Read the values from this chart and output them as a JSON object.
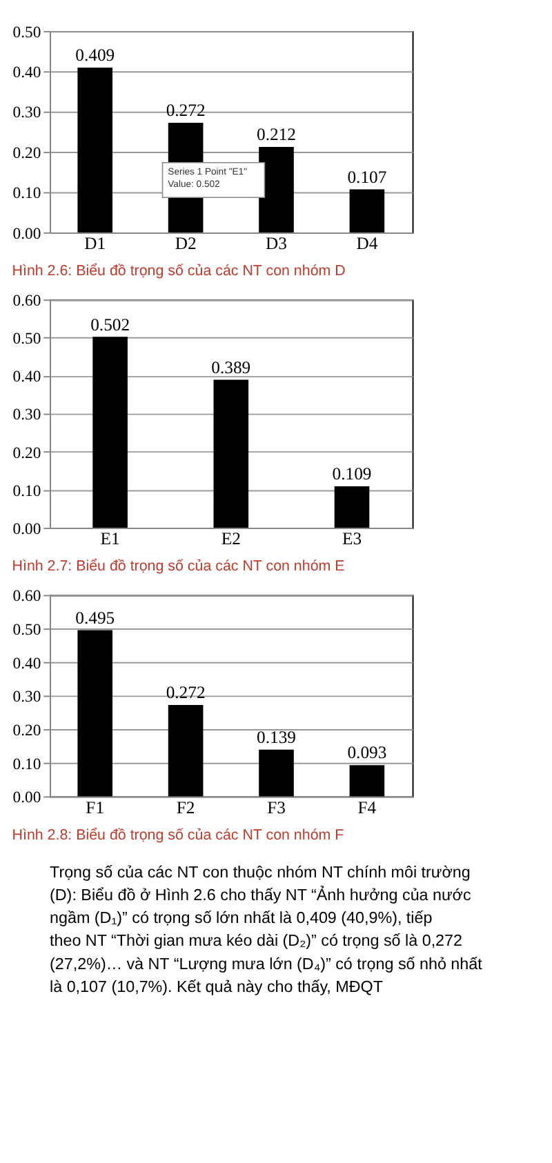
{
  "chart_data": [
    {
      "type": "bar",
      "categories": [
        "D1",
        "D2",
        "D3",
        "D4"
      ],
      "values": [
        0.409,
        0.272,
        0.212,
        0.107
      ],
      "color": "#000000",
      "ylim": [
        0,
        0.5
      ],
      "yticks": [
        {
          "value": 0,
          "label": "0.00"
        },
        {
          "value": 0.1,
          "label": "0.10"
        },
        {
          "value": 0.2,
          "label": "0.20"
        },
        {
          "value": 0.3,
          "label": "0.30"
        },
        {
          "value": 0.4,
          "label": "0.40"
        },
        {
          "value": 0.5,
          "label": "0.50"
        }
      ],
      "grid": "y",
      "data_labels": true,
      "annotations": [
        "Hình 2.6: Biểu đồ trọng số của các NT con nhóm D",
        "Series 1 Point \"E1\"\nValue: 0.502"
      ]
    },
    {
      "type": "bar",
      "categories": [
        "E1",
        "E2",
        "E3"
      ],
      "values": [
        0.502,
        0.389,
        0.109
      ],
      "color": "#000000",
      "ylim": [
        0,
        0.6
      ],
      "yticks": [
        {
          "value": 0,
          "label": "0.00"
        },
        {
          "value": 0.1,
          "label": "0.10"
        },
        {
          "value": 0.2,
          "label": "0.20"
        },
        {
          "value": 0.3,
          "label": "0.30"
        },
        {
          "value": 0.4,
          "label": "0.40"
        },
        {
          "value": 0.5,
          "label": "0.50"
        },
        {
          "value": 0.6,
          "label": "0.60"
        }
      ],
      "grid": "y",
      "data_labels": true,
      "annotations": [
        "Hình 2.7: Biểu đồ trọng số của các NT con nhóm E"
      ]
    },
    {
      "type": "bar",
      "categories": [
        "F1",
        "F2",
        "F3",
        "F4"
      ],
      "values": [
        0.495,
        0.272,
        0.139,
        0.093
      ],
      "color": "#000000",
      "ylim": [
        0,
        0.6
      ],
      "yticks": [
        {
          "value": 0,
          "label": "0.00"
        },
        {
          "value": 0.1,
          "label": "0.10"
        },
        {
          "value": 0.2,
          "label": "0.20"
        },
        {
          "value": 0.3,
          "label": "0.30"
        },
        {
          "value": 0.4,
          "label": "0.40"
        },
        {
          "value": 0.5,
          "label": "0.50"
        },
        {
          "value": 0.6,
          "label": "0.60"
        }
      ],
      "grid": "y",
      "data_labels": true,
      "annotations": [
        "Hình 2.8: Biểu đồ trọng số của các NT con nhóm F"
      ]
    },
    {
      "type": "other",
      "annotations": [
        "Trọng số của các NT con thuộc nhóm NT chính môi trường (D): Biểu đồ ở Hình 2.6 cho thấy NT “Ảnh hưởng của nước ngầm (D₁)” có trọng số lớn nhất là 0,409 (40,9%), tiếp theo NT “Thời gian mưa kéo dài (D₂)” có trọng số là 0,272 (27,2%)… và NT “Lượng mưa lớn (D₄)” có trọng số nhỏ nhất là 0,107 (10,7%). Kết quả này cho thấy, MĐQT"
      ]
    }
  ]
}
